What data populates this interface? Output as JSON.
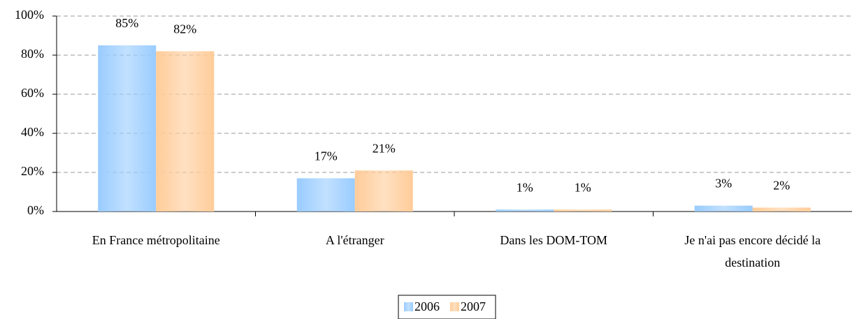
{
  "chart_data": {
    "type": "bar",
    "categories": [
      "En France métropolitaine",
      "A l'étranger",
      "Dans les DOM-TOM",
      "Je n'ai pas encore décidé la destination"
    ],
    "series": [
      {
        "name": "2006",
        "color": "#99ccff",
        "values": [
          85,
          17,
          1,
          3
        ],
        "value_labels": [
          "85%",
          "17%",
          "1%",
          "3%"
        ]
      },
      {
        "name": "2007",
        "color": "#ffcc99",
        "values": [
          82,
          21,
          1,
          2
        ],
        "value_labels": [
          "82%",
          "21%",
          "1%",
          "2%"
        ]
      }
    ],
    "ylim": [
      0,
      100
    ],
    "yticks": [
      {
        "value": 0,
        "label": "0%"
      },
      {
        "value": 20,
        "label": "20%"
      },
      {
        "value": 40,
        "label": "40%"
      },
      {
        "value": 60,
        "label": "60%"
      },
      {
        "value": 80,
        "label": "80%"
      },
      {
        "value": 100,
        "label": "100%"
      }
    ],
    "grid": true,
    "legend": "bottom"
  }
}
